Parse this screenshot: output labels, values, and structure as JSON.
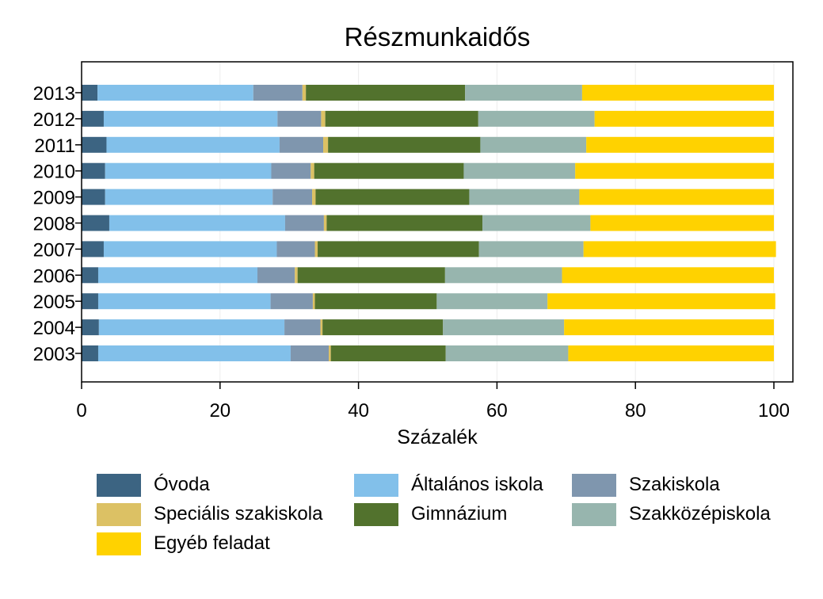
{
  "chart_data": {
    "type": "bar",
    "orientation": "horizontal",
    "stacked": true,
    "title": "Részmunkaidős",
    "xlabel": "Százalék",
    "ylabel": "",
    "xlim": [
      0,
      100
    ],
    "xticks": [
      0,
      20,
      40,
      60,
      80,
      100
    ],
    "grid": true,
    "legend_position": "bottom",
    "categories": [
      "2013",
      "2012",
      "2011",
      "2010",
      "2009",
      "2008",
      "2007",
      "2006",
      "2005",
      "2004",
      "2003"
    ],
    "series": [
      {
        "name": "Óvoda",
        "color": "#3c6482",
        "values": [
          2.3,
          3.2,
          3.6,
          3.4,
          3.4,
          4.0,
          3.2,
          2.4,
          2.4,
          2.5,
          2.4
        ]
      },
      {
        "name": "Általános iskola",
        "color": "#82c0ea",
        "values": [
          22.5,
          25.1,
          25.0,
          24.0,
          24.2,
          25.4,
          25.0,
          23.0,
          24.9,
          26.8,
          27.8
        ]
      },
      {
        "name": "Szakiskola",
        "color": "#7f96ae",
        "values": [
          7.1,
          6.3,
          6.3,
          5.7,
          5.7,
          5.6,
          5.5,
          5.4,
          6.1,
          5.2,
          5.5
        ]
      },
      {
        "name": "Speciális szakiskola",
        "color": "#dcc164",
        "values": [
          0.5,
          0.6,
          0.7,
          0.5,
          0.5,
          0.4,
          0.4,
          0.4,
          0.3,
          0.3,
          0.3
        ]
      },
      {
        "name": "Gimnázium",
        "color": "#52722d",
        "values": [
          23.0,
          22.1,
          22.0,
          21.6,
          22.2,
          22.5,
          23.3,
          21.3,
          17.6,
          17.4,
          16.6
        ]
      },
      {
        "name": "Szakközépiskola",
        "color": "#97b5ae",
        "values": [
          16.9,
          16.8,
          15.3,
          16.1,
          15.9,
          15.6,
          15.1,
          16.9,
          16.0,
          17.5,
          17.7
        ]
      },
      {
        "name": "Egyéb feladat",
        "color": "#ffd200",
        "values": [
          27.7,
          25.9,
          27.1,
          28.7,
          28.1,
          26.5,
          27.8,
          30.6,
          32.9,
          30.3,
          29.7
        ]
      }
    ]
  }
}
